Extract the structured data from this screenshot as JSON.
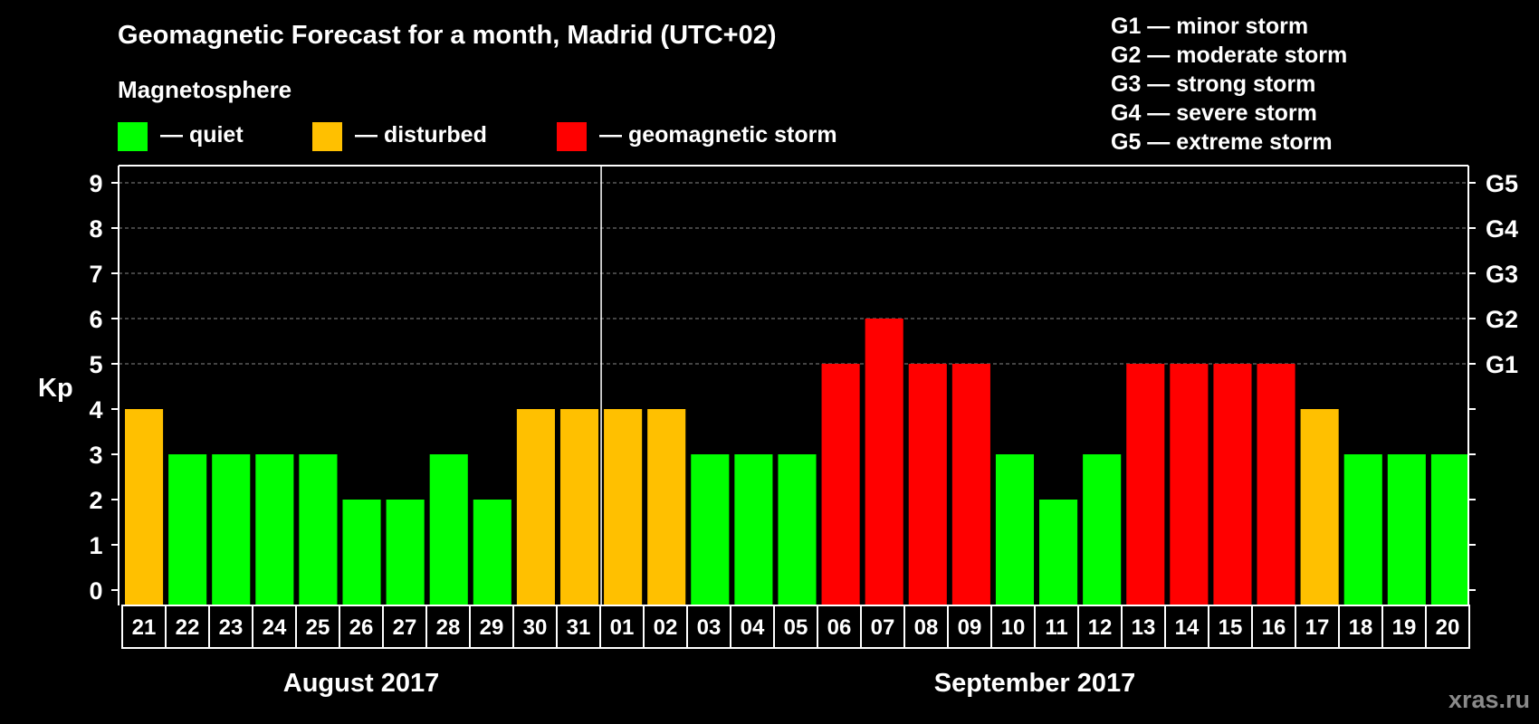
{
  "chart_data": {
    "type": "bar",
    "title": "Geomagnetic Forecast for a month, Madrid (UTC+02)",
    "subtitle": "Magnetosphere",
    "ylabel": "Kp",
    "ylim": [
      0,
      9
    ],
    "yticks": [
      "0",
      "1",
      "2",
      "3",
      "4",
      "5",
      "6",
      "7",
      "8",
      "9"
    ],
    "grid_levels": [
      5,
      6,
      7,
      8,
      9
    ],
    "storm_ticks": [
      {
        "level": 5,
        "label": "G1"
      },
      {
        "level": 6,
        "label": "G2"
      },
      {
        "level": 7,
        "label": "G3"
      },
      {
        "level": 8,
        "label": "G4"
      },
      {
        "level": 9,
        "label": "G5"
      }
    ],
    "categories": [
      "21",
      "22",
      "23",
      "24",
      "25",
      "26",
      "27",
      "28",
      "29",
      "30",
      "31",
      "01",
      "02",
      "03",
      "04",
      "05",
      "06",
      "07",
      "08",
      "09",
      "10",
      "11",
      "12",
      "13",
      "14",
      "15",
      "16",
      "17",
      "18",
      "19",
      "20"
    ],
    "values": [
      4,
      3,
      3,
      3,
      3,
      2,
      2,
      3,
      2,
      4,
      4,
      4,
      4,
      3,
      3,
      3,
      5,
      6,
      5,
      5,
      3,
      2,
      3,
      5,
      5,
      5,
      5,
      4,
      3,
      3,
      3
    ],
    "months": [
      {
        "label": "August 2017",
        "start": 0,
        "end": 10
      },
      {
        "label": "September 2017",
        "start": 11,
        "end": 30
      }
    ],
    "status_legend": [
      {
        "label": "— quiet",
        "color": "#00ff00"
      },
      {
        "label": "— disturbed",
        "color": "#ffc000"
      },
      {
        "label": "— geomagnetic storm",
        "color": "#ff0000"
      }
    ],
    "storm_legend": [
      "G1 — minor storm",
      "G2 — moderate storm",
      "G3 — strong storm",
      "G4 — severe storm",
      "G5 — extreme storm"
    ],
    "thresholds": {
      "quiet_max": 3,
      "disturbed_max": 4
    }
  },
  "watermark": "xras.ru",
  "colors": {
    "background": "#000000",
    "axis": "#ffffff",
    "grid": "#888888",
    "quiet": "#00ff00",
    "disturbed": "#ffc000",
    "storm": "#ff0000"
  }
}
